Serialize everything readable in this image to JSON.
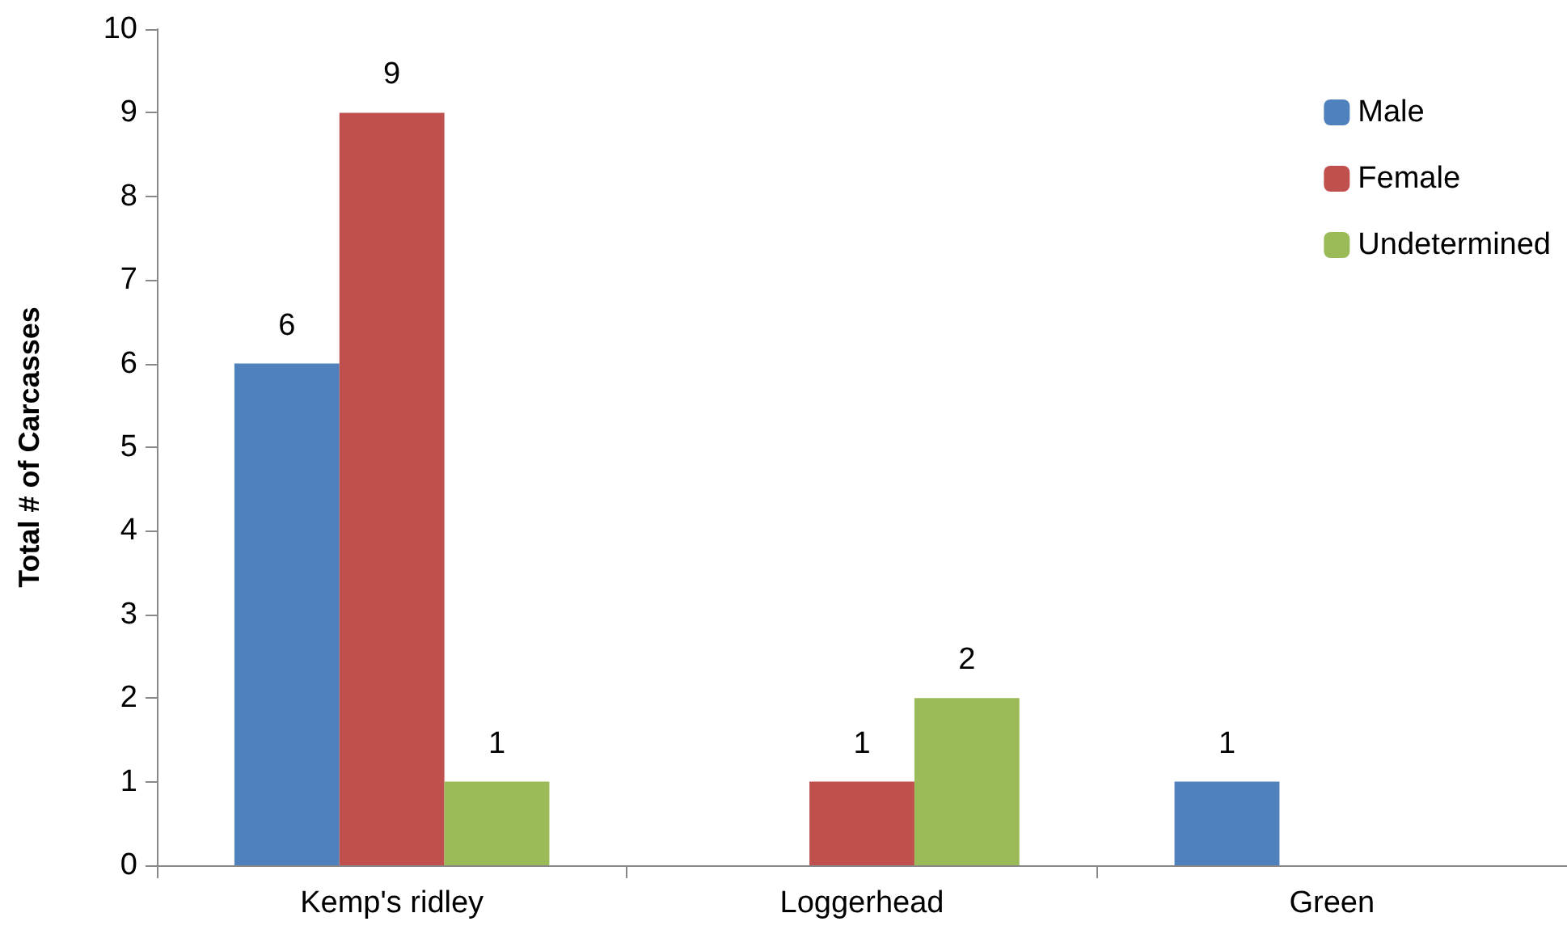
{
  "chart_data": {
    "type": "bar",
    "ylabel": "Total # of Carcasses",
    "categories": [
      "Kemp's ridley",
      "Loggerhead",
      "Green"
    ],
    "series": [
      {
        "name": "Male",
        "color": "#4f81bd",
        "values": [
          6,
          null,
          1
        ]
      },
      {
        "name": "Female",
        "color": "#c0504d",
        "values": [
          9,
          1,
          null
        ]
      },
      {
        "name": "Undetermined",
        "color": "#9bbb59",
        "values": [
          1,
          2,
          null
        ]
      }
    ],
    "ylim": [
      0,
      10
    ],
    "yticks": [
      0,
      1,
      2,
      3,
      4,
      5,
      6,
      7,
      8,
      9,
      10
    ],
    "grid": false,
    "legend": "top right",
    "data_labels": true
  }
}
